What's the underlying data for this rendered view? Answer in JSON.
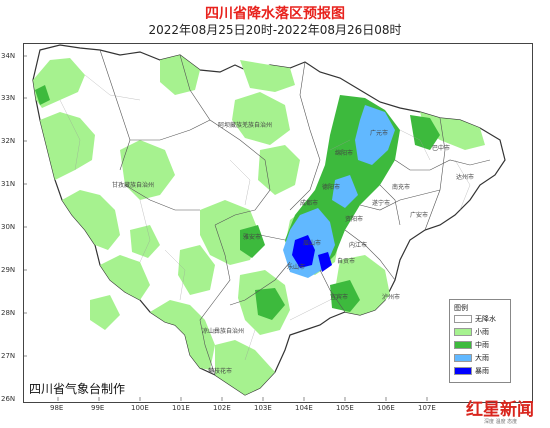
{
  "title": "四川省降水落区预报图",
  "subtitle": "2022年08月25日20时-2022年08月26日08时",
  "credit": "四川省气象台制作",
  "latitude_labels": [
    "34N",
    "33N",
    "32N",
    "31N",
    "30N",
    "29N",
    "28N",
    "27N",
    "26N"
  ],
  "longitude_labels": [
    "98E",
    "99E",
    "100E",
    "101E",
    "102E",
    "103E",
    "104E",
    "105E",
    "106E",
    "107E"
  ],
  "legend": {
    "title": "图例",
    "items": [
      {
        "label": "无降水",
        "color": "#ffffff"
      },
      {
        "label": "小雨",
        "color": "#a6f28f"
      },
      {
        "label": "中雨",
        "color": "#3dba3d"
      },
      {
        "label": "大雨",
        "color": "#61b8ff"
      },
      {
        "label": "暴雨",
        "color": "#0000ff"
      }
    ]
  },
  "cities": [
    {
      "name": "广元市"
    },
    {
      "name": "绵阳市"
    },
    {
      "name": "巴中市"
    },
    {
      "name": "德阳市"
    },
    {
      "name": "南充市"
    },
    {
      "name": "达州市"
    },
    {
      "name": "成都市"
    },
    {
      "name": "遂宁市"
    },
    {
      "name": "资阳市"
    },
    {
      "name": "雅安市"
    },
    {
      "name": "眉山市"
    },
    {
      "name": "乐山市"
    },
    {
      "name": "内江市"
    },
    {
      "name": "自贡市"
    },
    {
      "name": "宜宾市"
    },
    {
      "name": "泸州市"
    },
    {
      "name": "广安市"
    },
    {
      "name": "阿坝藏族羌族自治州"
    },
    {
      "name": "甘孜藏族自治州"
    },
    {
      "name": "凉山彝族自治州"
    },
    {
      "name": "攀枝花市"
    }
  ],
  "brand": {
    "logo_text": "红星新闻",
    "tagline": "深度 温度 态度"
  }
}
